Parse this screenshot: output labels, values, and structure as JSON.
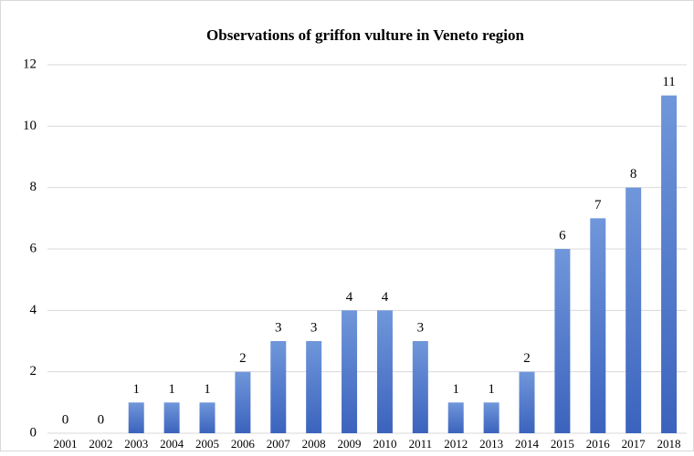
{
  "chart_data": {
    "type": "bar",
    "title": "Observations of griffon vulture in Veneto region",
    "categories": [
      "2001",
      "2002",
      "2003",
      "2004",
      "2005",
      "2006",
      "2007",
      "2008",
      "2009",
      "2010",
      "2011",
      "2012",
      "2013",
      "2014",
      "2015",
      "2016",
      "2017",
      "2018"
    ],
    "values": [
      0,
      0,
      1,
      1,
      1,
      2,
      3,
      3,
      4,
      4,
      3,
      1,
      1,
      2,
      6,
      7,
      8,
      11
    ],
    "color": "#4a72c8",
    "ylim": [
      0,
      12
    ],
    "yticks": [
      0,
      2,
      4,
      6,
      8,
      10,
      12
    ],
    "grid": true
  }
}
